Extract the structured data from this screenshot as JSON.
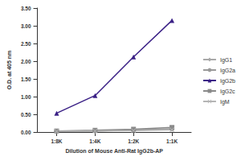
{
  "chart_data": {
    "type": "line",
    "x_label": "Dilution of Mouse Anti-Rat IgG2b-AP",
    "y_label": "O.D. at 405 nm",
    "categories": [
      "1:8K",
      "1:4K",
      "1:2K",
      "1:1K"
    ],
    "series": [
      {
        "name": "IgG1",
        "color": "#a8a8a8",
        "marker": "diamond",
        "values": [
          0.02,
          0.03,
          0.05,
          0.08
        ]
      },
      {
        "name": "IgG2a",
        "color": "#999999",
        "marker": "circle",
        "values": [
          0.02,
          0.03,
          0.06,
          0.09
        ]
      },
      {
        "name": "IgG2b",
        "color": "#3b2186",
        "marker": "triangle",
        "values": [
          0.53,
          1.03,
          2.12,
          3.15
        ]
      },
      {
        "name": "IgG2c",
        "color": "#8a8a8a",
        "marker": "square",
        "values": [
          0.03,
          0.05,
          0.08,
          0.13
        ]
      },
      {
        "name": "IgM",
        "color": "#b5b5b5",
        "marker": "cross",
        "values": [
          0.02,
          0.03,
          0.04,
          0.06
        ]
      }
    ],
    "ylim": [
      0,
      3.5
    ],
    "yticks": [
      {
        "value": 0,
        "label": "0.00"
      },
      {
        "value": 0.5,
        "label": "0.50"
      },
      {
        "value": 1,
        "label": "1.00"
      },
      {
        "value": 1.5,
        "label": "1.50"
      },
      {
        "value": 2,
        "label": "2.00"
      },
      {
        "value": 2.5,
        "label": "2.50"
      },
      {
        "value": 3,
        "label": "3.00"
      },
      {
        "value": 3.5,
        "label": "3.50"
      }
    ],
    "grid": false,
    "legend": "right"
  }
}
